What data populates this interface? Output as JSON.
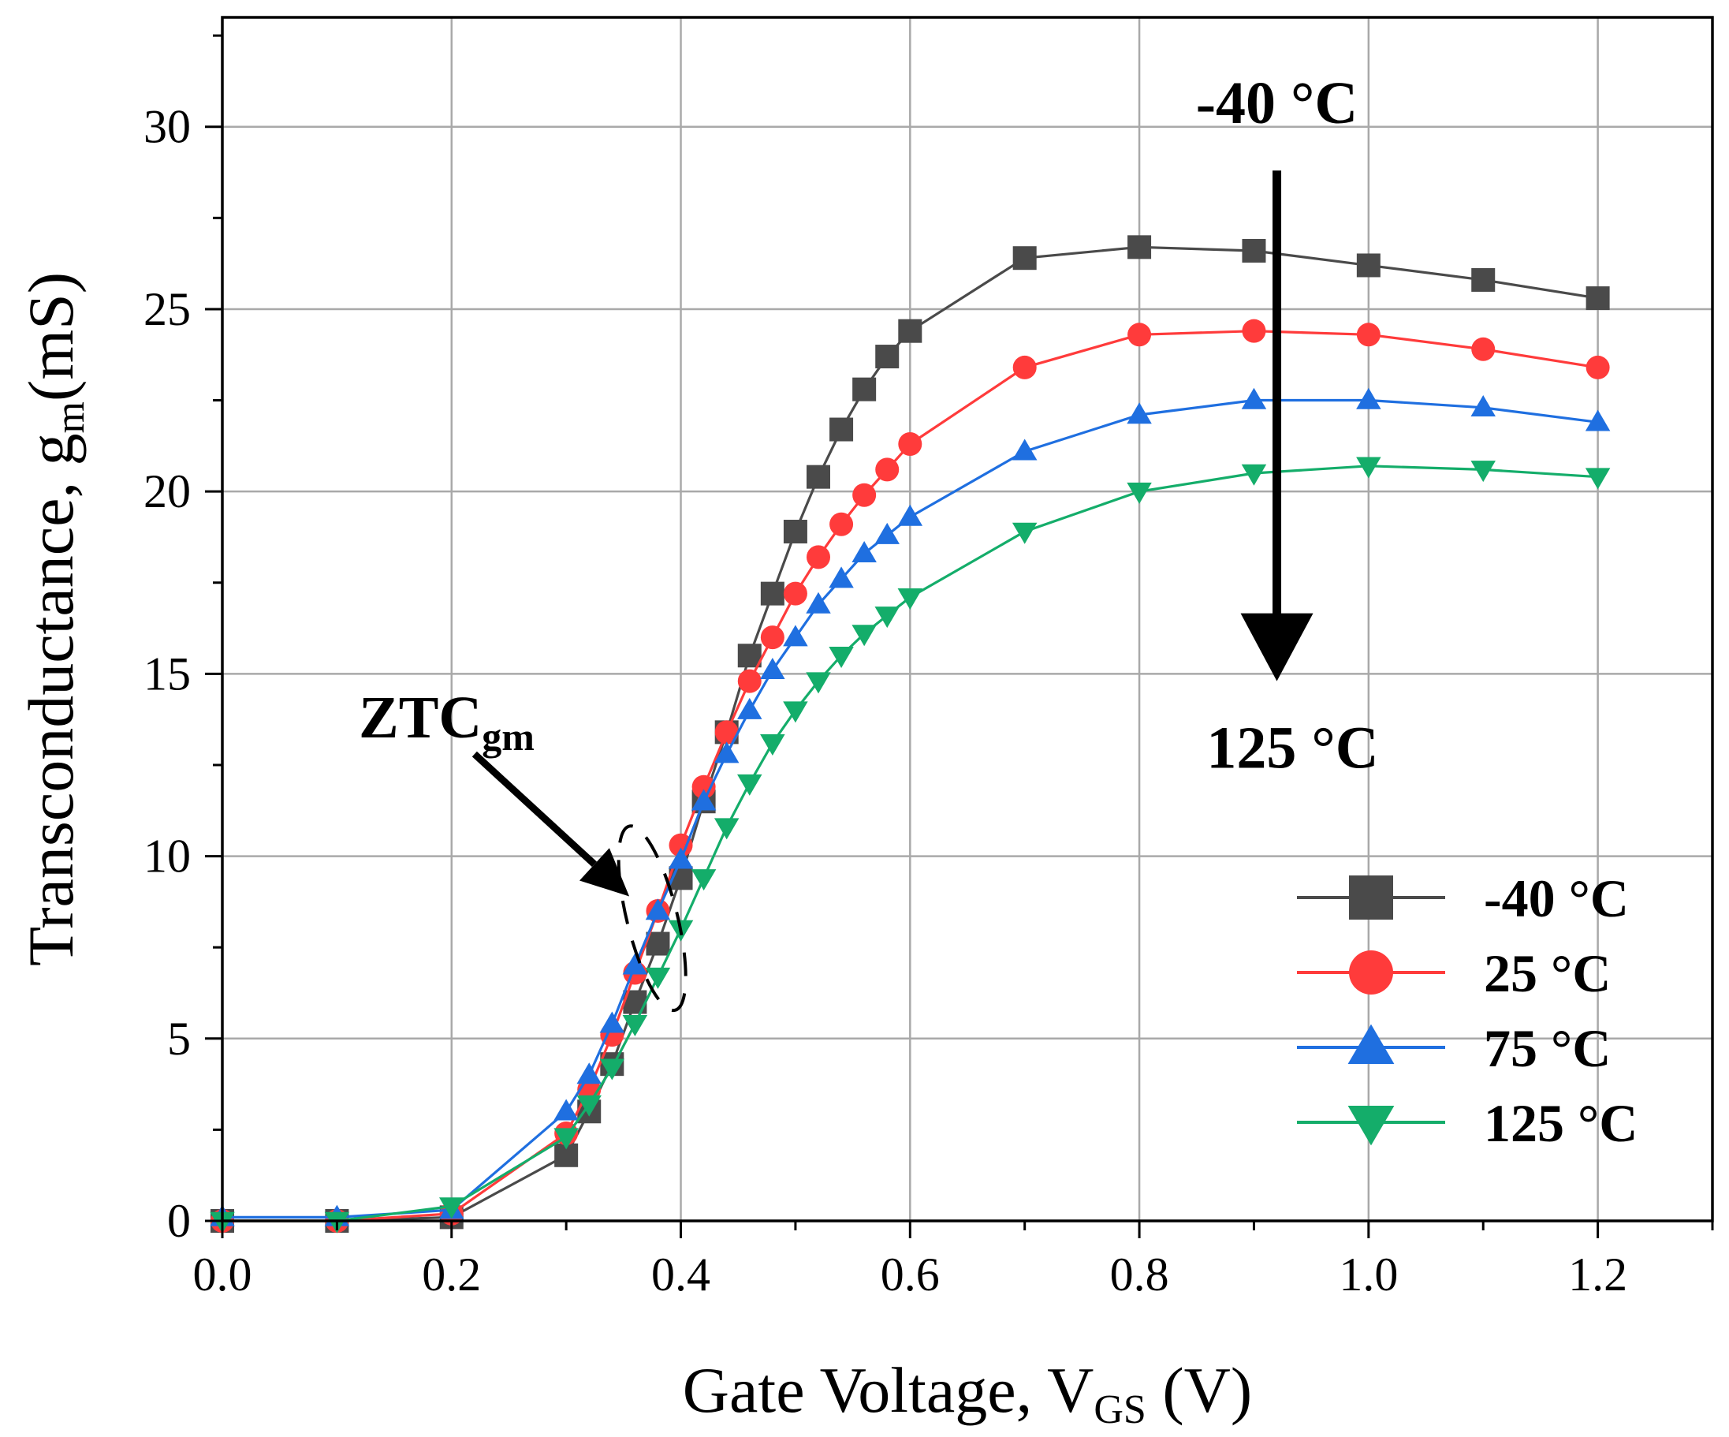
{
  "chart_data": {
    "type": "line",
    "title": "",
    "xlabel": {
      "main": "Gate Voltage, V",
      "sub": "GS",
      "unit": " (V)"
    },
    "ylabel": {
      "main": "Transconductance, g",
      "sub": "m",
      "unit": "(mS)"
    },
    "xlim": [
      0,
      1.3
    ],
    "ylim": [
      0,
      33
    ],
    "x_ticks": [
      0,
      0.2,
      0.4,
      0.6,
      0.8,
      1.0,
      1.2
    ],
    "x_tick_labels": [
      "0.0",
      "0.2",
      "0.4",
      "0.6",
      "0.8",
      "1.0",
      "1.2"
    ],
    "y_ticks": [
      0,
      5,
      10,
      15,
      20,
      25,
      30
    ],
    "y_tick_labels": [
      "0",
      "5",
      "10",
      "15",
      "20",
      "25",
      "30"
    ],
    "grid": true,
    "legend_position": "bottom-right",
    "series": [
      {
        "name": "-40 °C",
        "color": "#4a4a4a",
        "marker": "square",
        "x": [
          0,
          0.1,
          0.2,
          0.3,
          0.32,
          0.34,
          0.36,
          0.38,
          0.4,
          0.42,
          0.44,
          0.46,
          0.48,
          0.5,
          0.52,
          0.54,
          0.56,
          0.58,
          0.6,
          0.7,
          0.8,
          0.9,
          1.0,
          1.1,
          1.2
        ],
        "y": [
          0,
          0,
          0.1,
          1.8,
          3.0,
          4.3,
          6.0,
          7.6,
          9.4,
          11.5,
          13.4,
          15.5,
          17.2,
          18.9,
          20.4,
          21.7,
          22.8,
          23.7,
          24.4,
          26.4,
          26.7,
          26.6,
          26.2,
          25.8,
          25.3
        ]
      },
      {
        "name": "25 °C",
        "color": "#ff3b3b",
        "marker": "circle",
        "x": [
          0,
          0.1,
          0.2,
          0.3,
          0.32,
          0.34,
          0.36,
          0.38,
          0.4,
          0.42,
          0.44,
          0.46,
          0.48,
          0.5,
          0.52,
          0.54,
          0.56,
          0.58,
          0.6,
          0.7,
          0.8,
          0.9,
          1.0,
          1.1,
          1.2
        ],
        "y": [
          0,
          0,
          0.2,
          2.4,
          3.6,
          5.1,
          6.8,
          8.5,
          10.3,
          11.9,
          13.4,
          14.8,
          16.0,
          17.2,
          18.2,
          19.1,
          19.9,
          20.6,
          21.3,
          23.4,
          24.3,
          24.4,
          24.3,
          23.9,
          23.4
        ]
      },
      {
        "name": "75 °C",
        "color": "#1f6fe0",
        "marker": "triangle-up",
        "x": [
          0,
          0.1,
          0.2,
          0.3,
          0.32,
          0.34,
          0.36,
          0.38,
          0.4,
          0.42,
          0.44,
          0.46,
          0.48,
          0.5,
          0.52,
          0.54,
          0.56,
          0.58,
          0.6,
          0.7,
          0.8,
          0.9,
          1.0,
          1.1,
          1.2
        ],
        "y": [
          0.1,
          0.1,
          0.3,
          3.0,
          4.0,
          5.4,
          7.0,
          8.5,
          9.9,
          11.5,
          12.8,
          14.0,
          15.1,
          16.0,
          16.9,
          17.6,
          18.3,
          18.8,
          19.3,
          21.1,
          22.1,
          22.5,
          22.5,
          22.3,
          21.9
        ]
      },
      {
        "name": "125 °C",
        "color": "#14ad6a",
        "marker": "triangle-down",
        "x": [
          0,
          0.1,
          0.2,
          0.3,
          0.32,
          0.34,
          0.36,
          0.38,
          0.4,
          0.42,
          0.44,
          0.46,
          0.48,
          0.5,
          0.52,
          0.54,
          0.56,
          0.58,
          0.6,
          0.7,
          0.8,
          0.9,
          1.0,
          1.1,
          1.2
        ],
        "y": [
          0,
          0,
          0.4,
          2.3,
          3.2,
          4.2,
          5.4,
          6.7,
          8.0,
          9.4,
          10.8,
          12.0,
          13.1,
          14.0,
          14.8,
          15.5,
          16.1,
          16.6,
          17.1,
          18.9,
          20.0,
          20.5,
          20.7,
          20.6,
          20.4
        ]
      }
    ],
    "annotations": [
      {
        "id": "trend",
        "top_label": "-40 °C",
        "bottom_label": "125 °C",
        "arrow": "down",
        "x": 0.92,
        "y_from": 28.8,
        "y_to": 14.8
      },
      {
        "id": "ztc",
        "label": "ZTC",
        "label_sub": "gm",
        "arrow_from": [
          0.22,
          12.8
        ],
        "arrow_to": [
          0.355,
          8.9
        ],
        "ellipse_center": [
          0.375,
          8.3
        ],
        "ellipse_radii": [
          0.022,
          2.6
        ]
      }
    ]
  }
}
